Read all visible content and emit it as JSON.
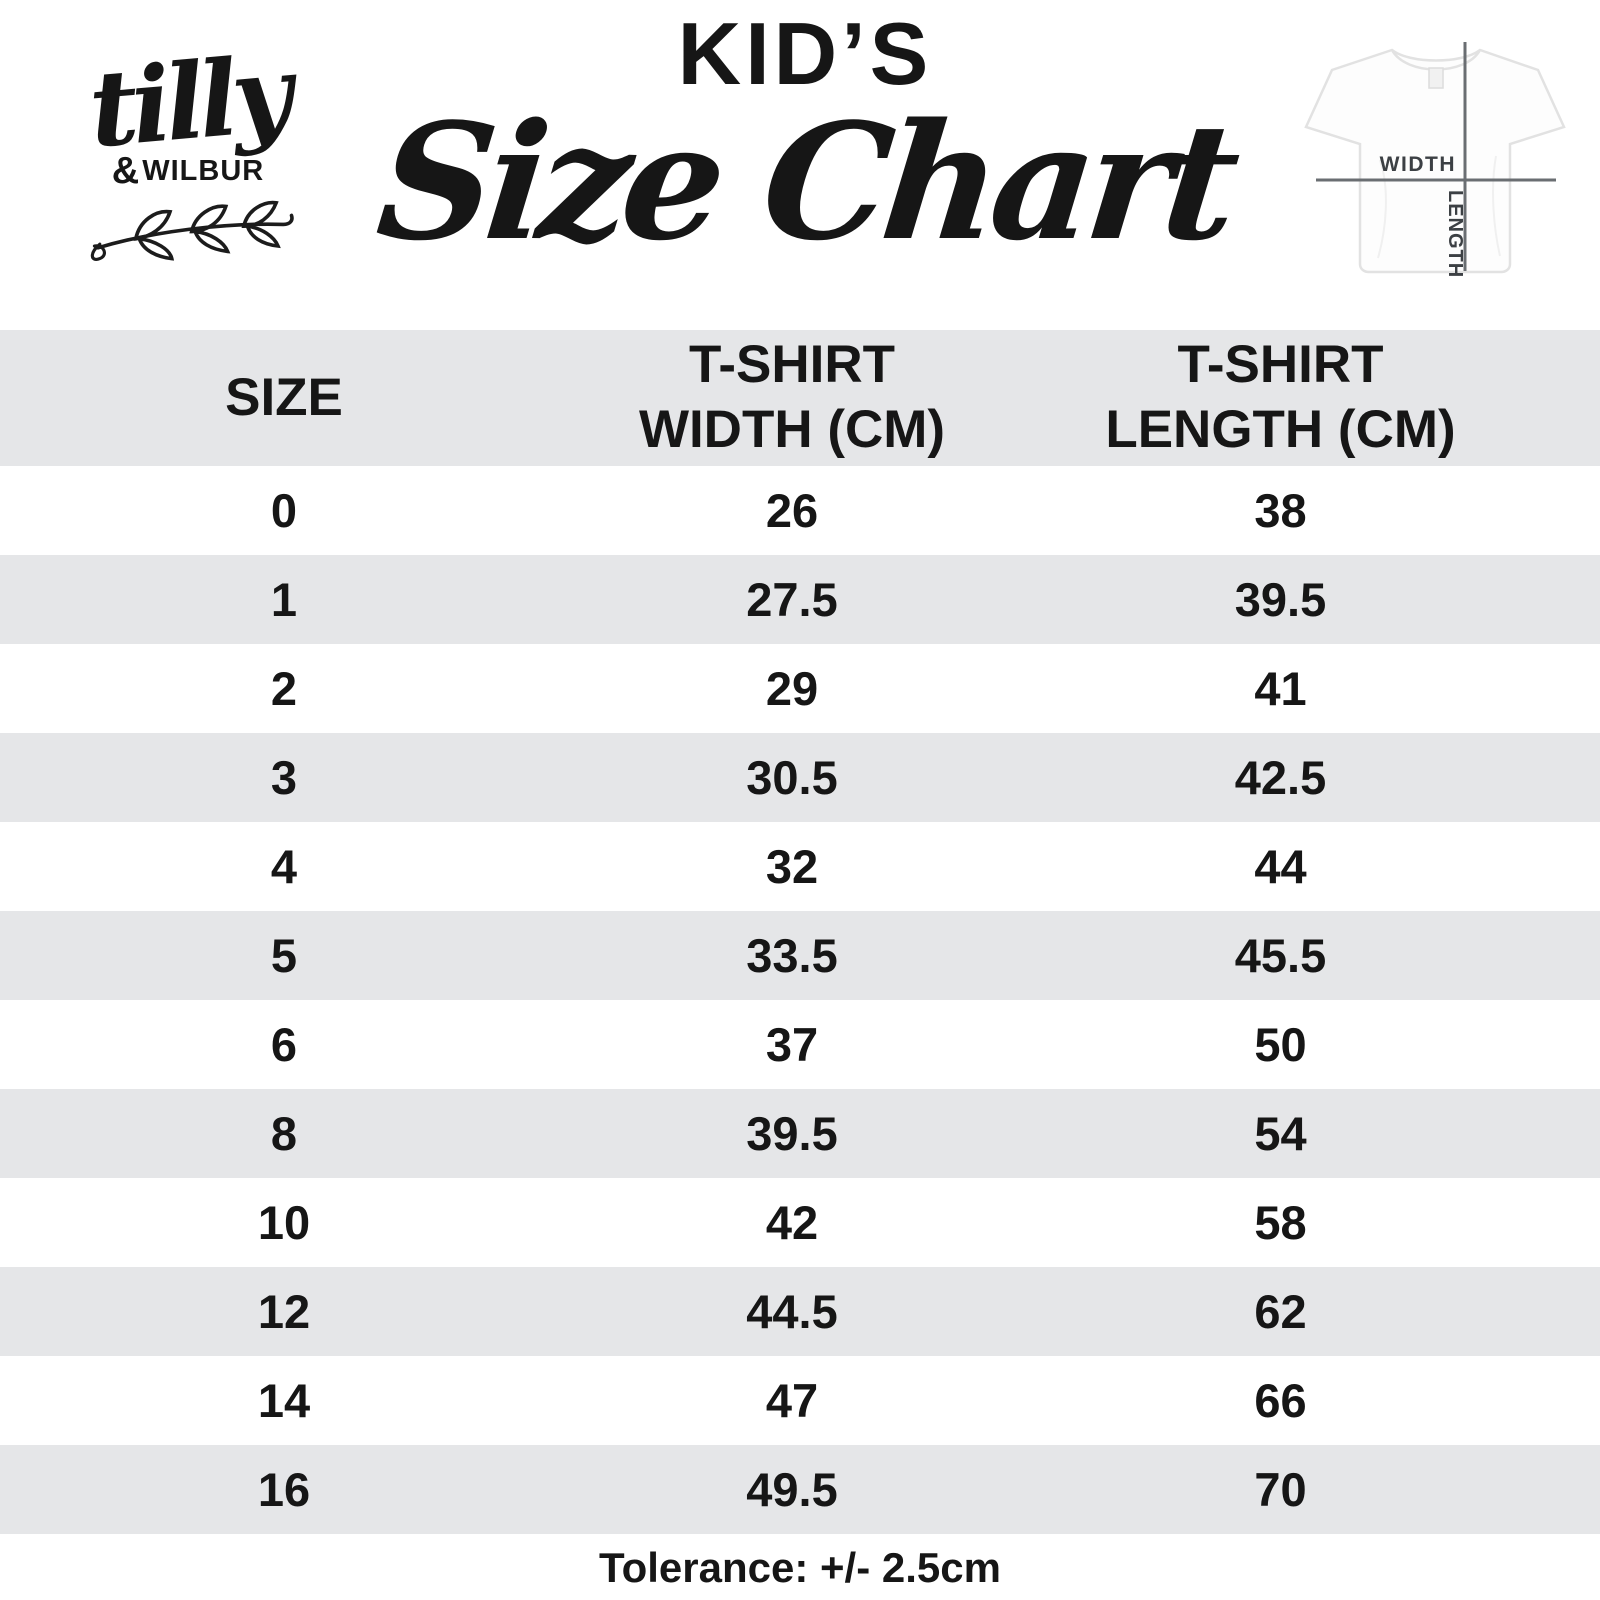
{
  "brand": {
    "script": "tilly",
    "amp": "&",
    "caps": "WILBUR"
  },
  "header": {
    "kicker": "KID’S",
    "title": "Size Chart"
  },
  "tshirt_diagram": {
    "width_label": "WIDTH",
    "length_label": "LENGTH"
  },
  "table": {
    "columns": [
      {
        "line1": "SIZE",
        "line2": ""
      },
      {
        "line1": "T-SHIRT",
        "line2": "WIDTH (CM)"
      },
      {
        "line1": "T-SHIRT",
        "line2": "LENGTH (CM)"
      }
    ],
    "rows": [
      {
        "size": "0",
        "width": "26",
        "length": "38"
      },
      {
        "size": "1",
        "width": "27.5",
        "length": "39.5"
      },
      {
        "size": "2",
        "width": "29",
        "length": "41"
      },
      {
        "size": "3",
        "width": "30.5",
        "length": "42.5"
      },
      {
        "size": "4",
        "width": "32",
        "length": "44"
      },
      {
        "size": "5",
        "width": "33.5",
        "length": "45.5"
      },
      {
        "size": "6",
        "width": "37",
        "length": "50"
      },
      {
        "size": "8",
        "width": "39.5",
        "length": "54"
      },
      {
        "size": "10",
        "width": "42",
        "length": "58"
      },
      {
        "size": "12",
        "width": "44.5",
        "length": "62"
      },
      {
        "size": "14",
        "width": "47",
        "length": "66"
      },
      {
        "size": "16",
        "width": "49.5",
        "length": "70"
      }
    ],
    "footnote": "Tolerance: +/- 2.5cm"
  },
  "colors": {
    "band_gray": "#e5e6e8",
    "text": "#161616",
    "diagram_line": "#6a6e72",
    "diagram_label": "#3c4044",
    "tee_outline": "#e2e2e2"
  },
  "chart_data": {
    "type": "table",
    "title": "KID'S Size Chart",
    "columns": [
      "SIZE",
      "T-SHIRT WIDTH (CM)",
      "T-SHIRT LENGTH (CM)"
    ],
    "rows": [
      [
        0,
        26,
        38
      ],
      [
        1,
        27.5,
        39.5
      ],
      [
        2,
        29,
        41
      ],
      [
        3,
        30.5,
        42.5
      ],
      [
        4,
        32,
        44
      ],
      [
        5,
        33.5,
        45.5
      ],
      [
        6,
        37,
        50
      ],
      [
        8,
        39.5,
        54
      ],
      [
        10,
        42,
        58
      ],
      [
        12,
        44.5,
        62
      ],
      [
        14,
        47,
        66
      ],
      [
        16,
        49.5,
        70
      ]
    ],
    "footnote": "Tolerance: +/- 2.5cm",
    "row_striping": "alternating white / light gray starting with white"
  }
}
